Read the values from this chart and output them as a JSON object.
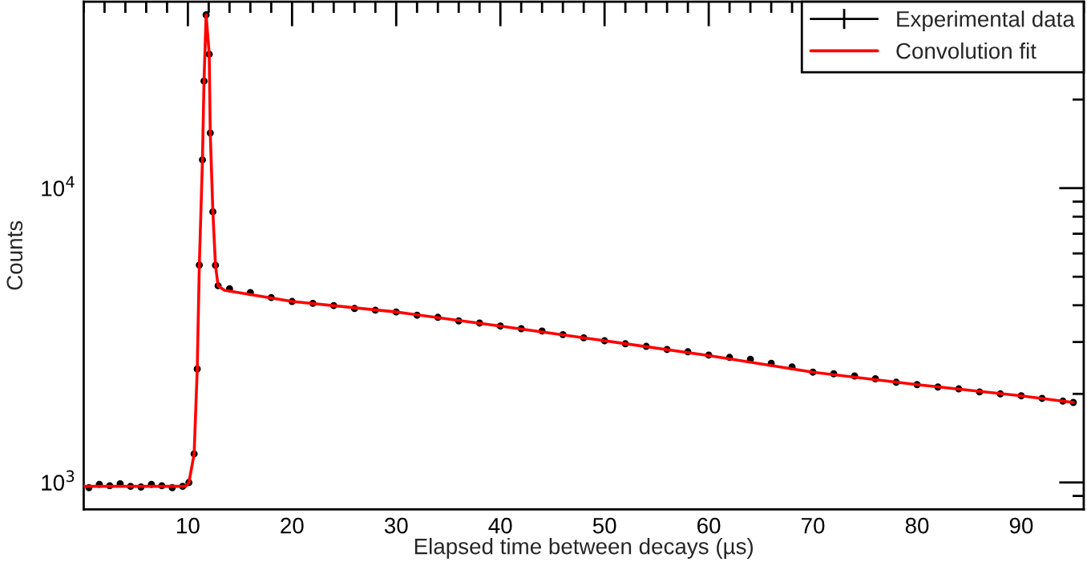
{
  "chart_data": {
    "type": "scatter",
    "xlabel": "Elapsed time between decays (µs)",
    "ylabel": "Counts",
    "log": "y",
    "xlim": [
      0,
      96
    ],
    "xticks": [
      10,
      20,
      30,
      40,
      50,
      60,
      70,
      80,
      90
    ],
    "ylim": [
      810,
      43000
    ],
    "yticks": [
      {
        "value": 1000,
        "label": "10$^{3}$"
      },
      {
        "value": 10000,
        "label": "10$^{4}$"
      }
    ],
    "grid": false,
    "legend": "top right",
    "series": [
      {
        "name": "Experimental data",
        "color": "#000000",
        "marker": "circle",
        "x": [
          0.5,
          1.5,
          2.5,
          3.5,
          4.5,
          5.5,
          6.5,
          7.5,
          8.5,
          9.5,
          10.1,
          10.6,
          10.9,
          11.1,
          11.4,
          11.55,
          11.75,
          12.05,
          12.15,
          12.4,
          12.65,
          12.9,
          14,
          16,
          18,
          20,
          22,
          24,
          26,
          28,
          30,
          32,
          34,
          36,
          38,
          40,
          42,
          44,
          46,
          48,
          50,
          52,
          54,
          56,
          58,
          60,
          62,
          64,
          66,
          68,
          70,
          72,
          74,
          76,
          78,
          80,
          82,
          84,
          86,
          88,
          90,
          92,
          94,
          95
        ],
        "values": [
          960,
          985,
          975,
          990,
          970,
          965,
          985,
          975,
          960,
          970,
          1000,
          1250,
          2430,
          5480,
          12480,
          23100,
          38800,
          28500,
          15400,
          8310,
          5470,
          4660,
          4550,
          4420,
          4250,
          4120,
          4060,
          3990,
          3900,
          3850,
          3795,
          3700,
          3640,
          3540,
          3480,
          3400,
          3330,
          3270,
          3180,
          3100,
          3030,
          2960,
          2900,
          2830,
          2780,
          2710,
          2660,
          2620,
          2540,
          2470,
          2370,
          2340,
          2300,
          2250,
          2190,
          2150,
          2110,
          2080,
          2030,
          2000,
          1970,
          1930,
          1890,
          1870
        ]
      },
      {
        "name": "Convolution fit",
        "color": "#ff0000",
        "type": "line",
        "x": [
          0,
          9.8,
          10.1,
          10.6,
          10.9,
          11.1,
          11.4,
          11.55,
          11.75,
          12.05,
          12.15,
          12.4,
          12.65,
          12.9,
          13.5,
          20,
          30,
          40,
          50,
          60,
          70,
          80,
          90,
          95
        ],
        "values": [
          970,
          970,
          1000,
          1250,
          2430,
          5480,
          12480,
          23100,
          38800,
          28500,
          15400,
          8310,
          5470,
          4660,
          4500,
          4120,
          3795,
          3400,
          3030,
          2700,
          2370,
          2150,
          1970,
          1870
        ]
      }
    ]
  }
}
